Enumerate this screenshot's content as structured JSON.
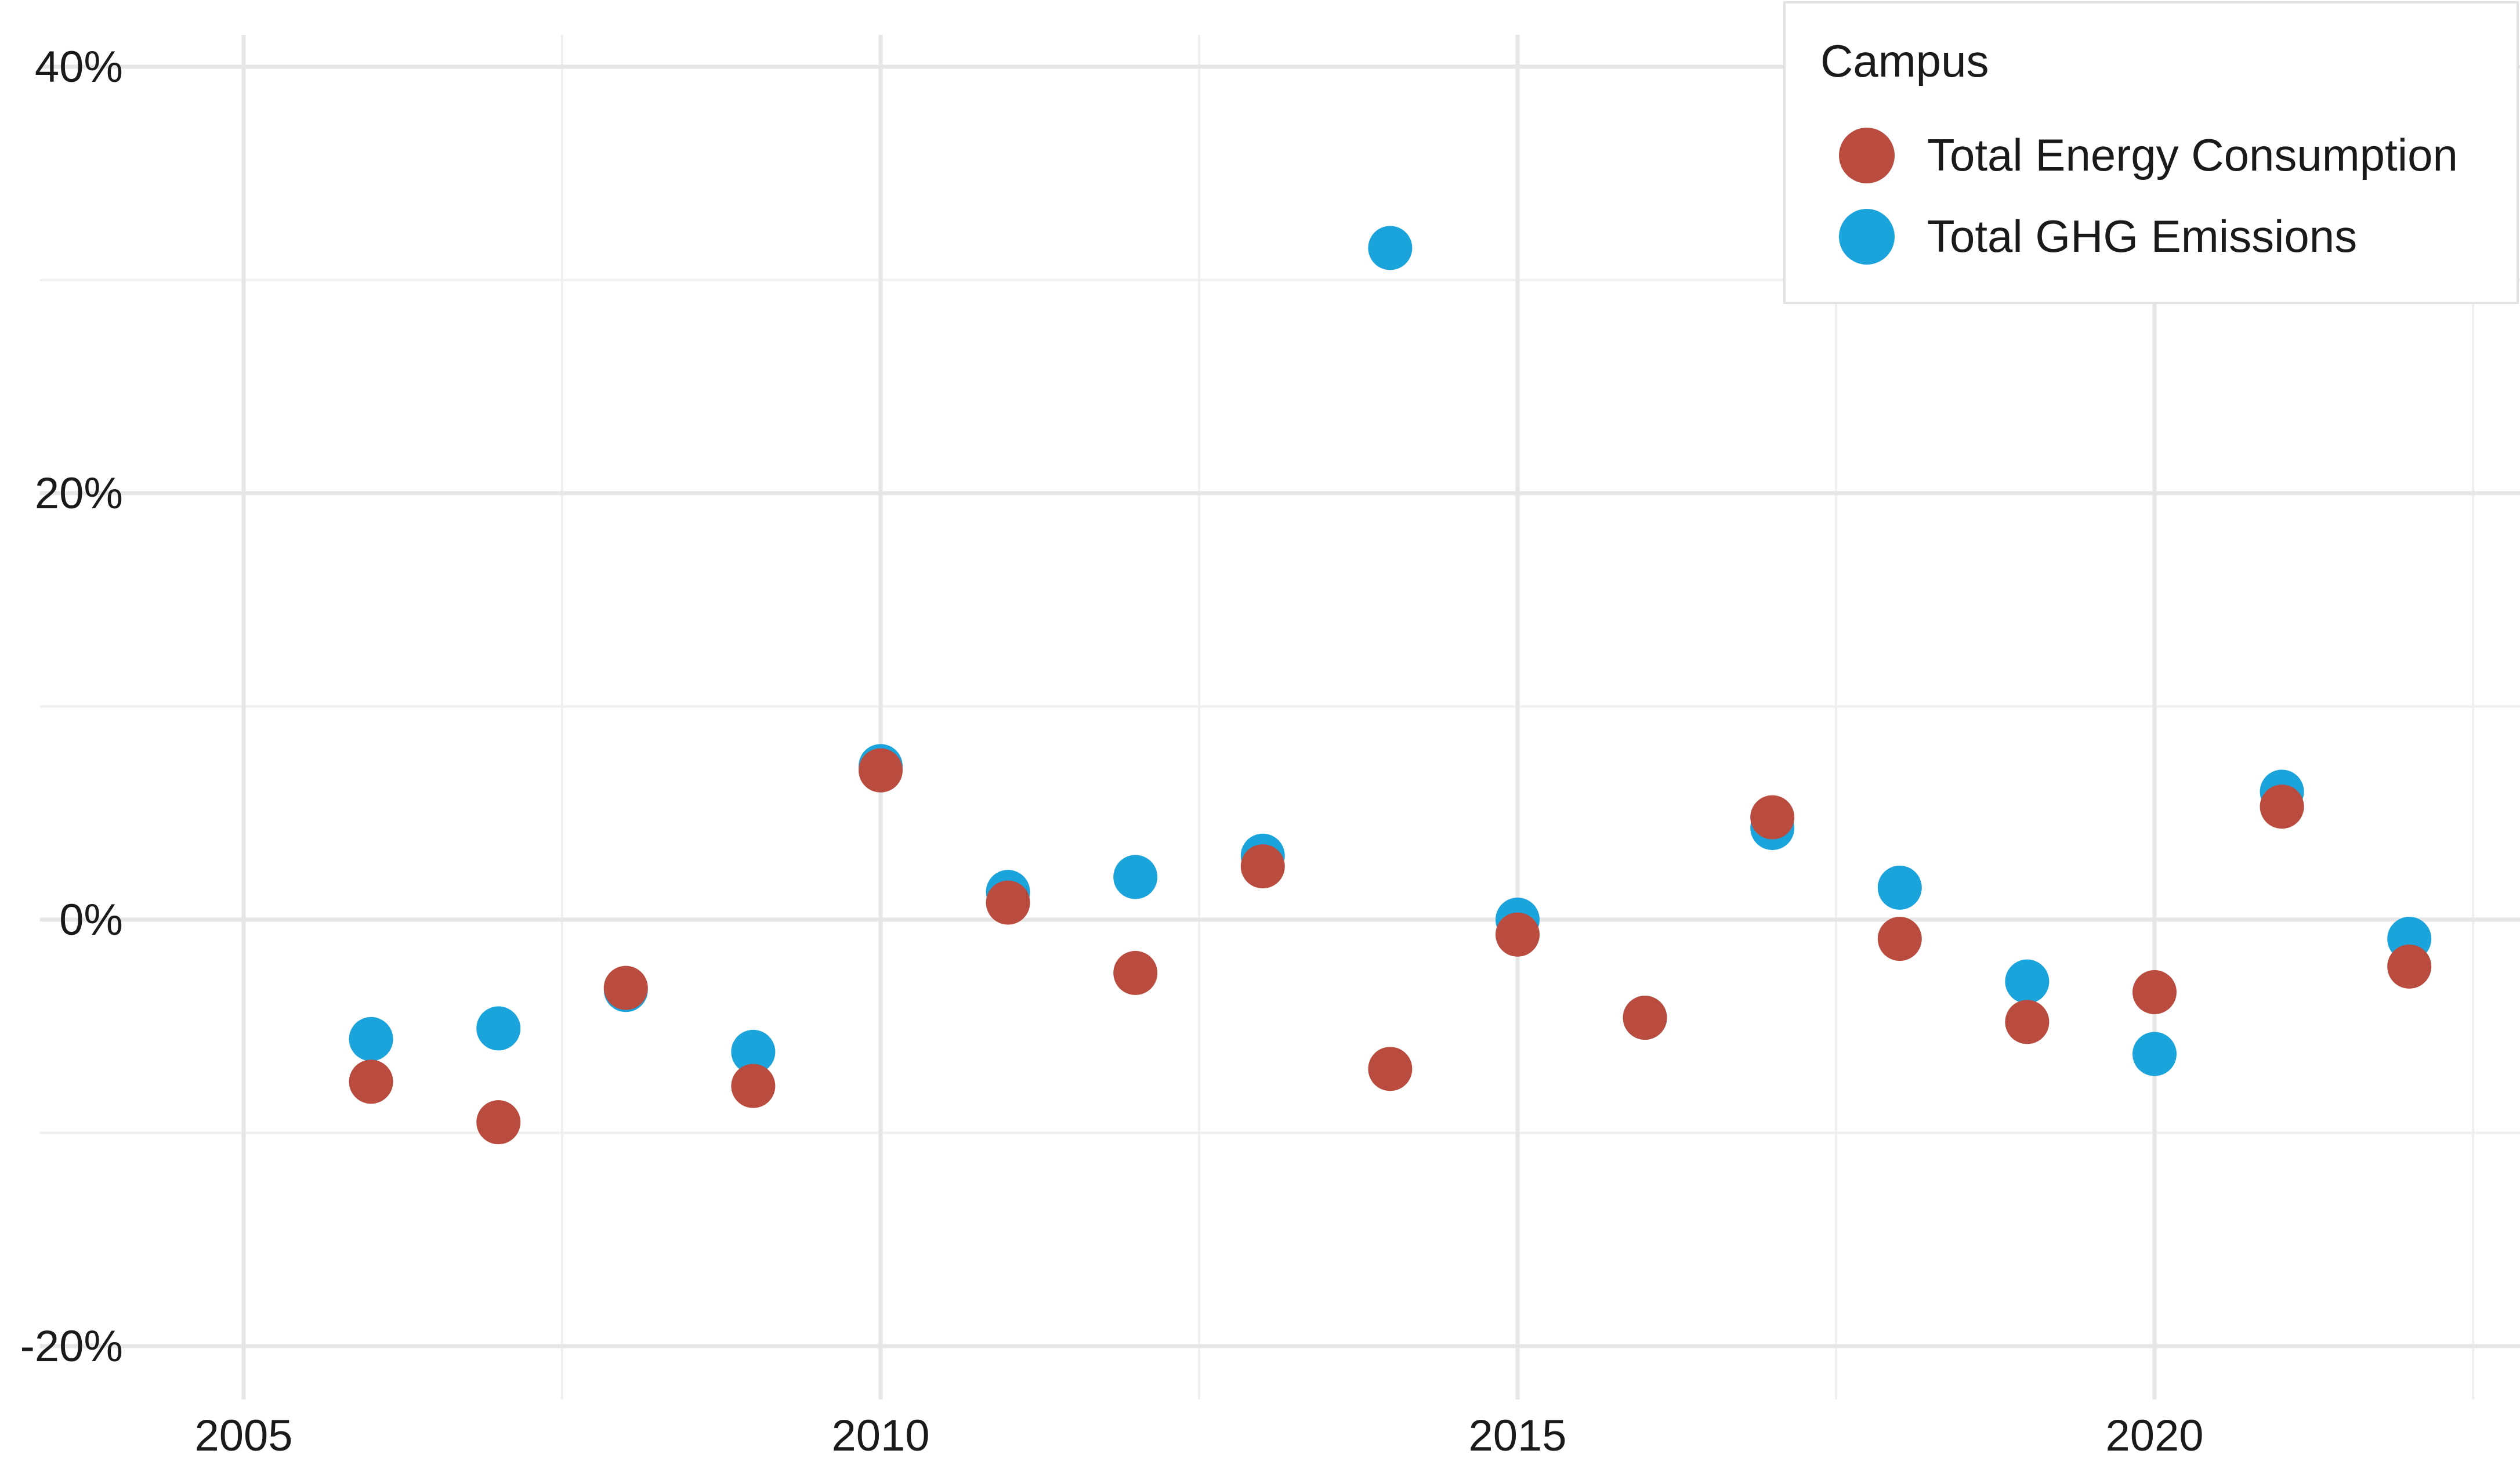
{
  "chart_data": {
    "type": "scatter",
    "title": "",
    "xlabel": "",
    "ylabel": "",
    "xlim": [
      2003.4,
      2023.1
    ],
    "ylim": [
      -22.5,
      41.5
    ],
    "x_ticks": [
      2005,
      2010,
      2015,
      2020
    ],
    "x_tick_labels": [
      "2005",
      "2010",
      "2015",
      "2020"
    ],
    "y_ticks": [
      -20,
      0,
      20,
      40
    ],
    "y_tick_labels": [
      "-20%",
      "0%",
      "20%",
      "40%"
    ],
    "grid": true,
    "legend": {
      "title": "Campus",
      "placement": "top-right"
    },
    "series": [
      {
        "name": "Total GHG Emissions",
        "color": "#1BA3DC",
        "x": [
          2006,
          2007,
          2008,
          2009,
          2010,
          2011,
          2012,
          2013,
          2014,
          2015,
          2016,
          2017,
          2018,
          2019,
          2020,
          2021,
          2022
        ],
        "values": [
          -5.6,
          -5.1,
          -3.3,
          -6.2,
          7.2,
          1.3,
          2.0,
          3.0,
          31.5,
          0.0,
          -4.6,
          4.3,
          1.5,
          -2.9,
          -6.3,
          6.0,
          -0.9
        ]
      },
      {
        "name": "Total Energy Consumption",
        "color": "#B94C3E",
        "x": [
          2006,
          2007,
          2008,
          2009,
          2010,
          2011,
          2012,
          2013,
          2014,
          2015,
          2016,
          2017,
          2018,
          2019,
          2020,
          2021,
          2022
        ],
        "values": [
          -7.6,
          -9.5,
          -3.2,
          -7.8,
          7.0,
          0.8,
          -2.5,
          2.5,
          -7.0,
          -0.7,
          -4.6,
          4.8,
          -0.9,
          -4.8,
          -3.4,
          5.3,
          -2.2
        ]
      }
    ],
    "legend_order": [
      "Total Energy Consumption",
      "Total GHG Emissions"
    ]
  }
}
